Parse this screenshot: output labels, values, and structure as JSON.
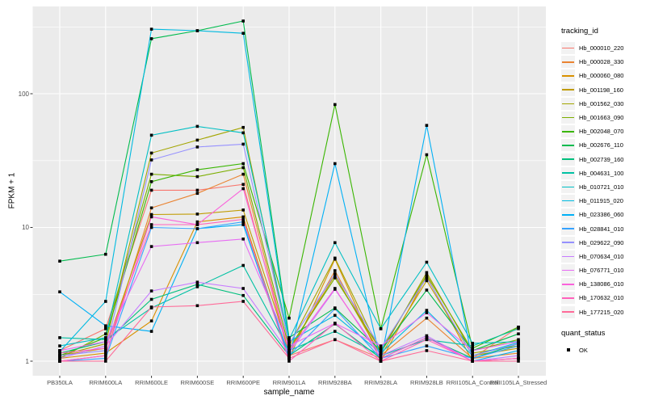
{
  "chart_data": {
    "type": "line",
    "title": "",
    "xlabel": "sample_name",
    "ylabel": "FPKM + 1",
    "x_type": "categorical",
    "y_scale": "log10",
    "ylim": [
      0.78,
      450
    ],
    "y_ticks": [
      1,
      10,
      100
    ],
    "y_minor_gridlines": [
      3.162,
      31.62,
      316.2
    ],
    "grid": true,
    "panel_color": "#EBEBEB",
    "gridline_color": "#FFFFFF",
    "point_color": "#000000",
    "point_shape": "square",
    "categories": [
      "PB350LA",
      "RRIM600LA",
      "RRIM600LE",
      "RRIM600SE",
      "RRIM600PE",
      "RRIM901LA",
      "RRIM928BA",
      "RRIM928LA",
      "RRIM928LB",
      "RRII105LA_Control",
      "RRII105LA_Stressed"
    ],
    "series": [
      {
        "name": "Hb_000010_220",
        "color": "#F8766D",
        "values": [
          1.2,
          1.75,
          19,
          19,
          21,
          1.1,
          1.45,
          1.05,
          1.5,
          1.05,
          1.8
        ]
      },
      {
        "name": "Hb_000028_330",
        "color": "#EA8331",
        "values": [
          1.0,
          1.1,
          14,
          18,
          25,
          1.15,
          4.75,
          1.1,
          2.1,
          1.05,
          1.15
        ]
      },
      {
        "name": "Hb_000060_080",
        "color": "#D89000",
        "values": [
          1.05,
          1.15,
          2.0,
          11,
          12,
          1.05,
          5.8,
          1.0,
          4.3,
          1.0,
          1.05
        ]
      },
      {
        "name": "Hb_001198_160",
        "color": "#C09B00",
        "values": [
          1.1,
          1.25,
          12.5,
          12.6,
          13.5,
          1.2,
          4.4,
          1.1,
          4.0,
          1.1,
          1.25
        ]
      },
      {
        "name": "Hb_001562_030",
        "color": "#A3A500",
        "values": [
          1.1,
          1.35,
          36,
          45,
          56,
          1.3,
          5.9,
          1.15,
          4.6,
          1.15,
          1.3
        ]
      },
      {
        "name": "Hb_001663_090",
        "color": "#7CAE00",
        "values": [
          1.05,
          1.6,
          25,
          24,
          28,
          1.25,
          4.2,
          1.2,
          4.4,
          1.2,
          1.45
        ]
      },
      {
        "name": "Hb_002048_070",
        "color": "#39B600",
        "values": [
          1.1,
          1.5,
          22,
          27,
          30,
          2.1,
          83,
          1.75,
          35,
          1.25,
          1.8
        ]
      },
      {
        "name": "Hb_002676_110",
        "color": "#00BB4E",
        "values": [
          5.6,
          6.3,
          258,
          296,
          350,
          1.5,
          2.5,
          1.2,
          3.4,
          1.2,
          1.6
        ]
      },
      {
        "name": "Hb_002739_160",
        "color": "#00BF7D",
        "values": [
          1.15,
          1.4,
          2.9,
          3.75,
          3.1,
          1.1,
          1.9,
          1.05,
          1.5,
          1.05,
          1.35
        ]
      },
      {
        "name": "Hb_004631_100",
        "color": "#00C1A3",
        "values": [
          1.5,
          1.45,
          2.5,
          3.6,
          5.2,
          1.2,
          1.67,
          1.1,
          1.45,
          1.3,
          1.75
        ]
      },
      {
        "name": "Hb_010721_010",
        "color": "#00BFC4",
        "values": [
          1.3,
          1.5,
          49,
          57,
          51,
          1.45,
          7.7,
          1.75,
          5.5,
          1.36,
          1.4
        ]
      },
      {
        "name": "Hb_011915_020",
        "color": "#00BAE0",
        "values": [
          1.18,
          2.8,
          304,
          296,
          283,
          1.4,
          2.2,
          1.15,
          2.4,
          1.1,
          1.38
        ]
      },
      {
        "name": "Hb_023386_060",
        "color": "#00B0F6",
        "values": [
          3.3,
          1.84,
          1.67,
          9.8,
          10.5,
          1.05,
          30,
          1.0,
          58,
          1.0,
          1.2
        ]
      },
      {
        "name": "Hb_028841_010",
        "color": "#35A2FF",
        "values": [
          1.0,
          1.05,
          10,
          9.8,
          11,
          1.1,
          2.47,
          1.05,
          1.3,
          1.05,
          1.3
        ]
      },
      {
        "name": "Hb_029622_090",
        "color": "#9590FF",
        "values": [
          1.1,
          1.2,
          32,
          40,
          42,
          1.35,
          4.5,
          1.25,
          4.2,
          1.1,
          1.35
        ]
      },
      {
        "name": "Hb_070634_010",
        "color": "#C77CFF",
        "values": [
          1.05,
          1.3,
          3.35,
          3.9,
          3.5,
          1.15,
          3.45,
          1.1,
          1.55,
          1.0,
          1.1
        ]
      },
      {
        "name": "Hb_076771_010",
        "color": "#E76BF3",
        "values": [
          1.2,
          1.4,
          7.2,
          7.7,
          8.2,
          1.3,
          1.92,
          1.3,
          2.3,
          1.2,
          1.4
        ]
      },
      {
        "name": "Hb_138086_010",
        "color": "#FA62DB",
        "values": [
          1.0,
          1.1,
          12,
          10.5,
          19.5,
          1.2,
          3.5,
          1.05,
          1.5,
          1.0,
          1.05
        ]
      },
      {
        "name": "Hb_170632_010",
        "color": "#FF62BC",
        "values": [
          1.15,
          1.25,
          10.5,
          10.5,
          11.5,
          1.0,
          1.92,
          1.0,
          1.45,
          1.0,
          1.05
        ]
      },
      {
        "name": "Hb_177215_020",
        "color": "#FF6A98",
        "values": [
          1.0,
          1.0,
          2.54,
          2.6,
          2.8,
          1.05,
          1.45,
          1.0,
          1.2,
          1.0,
          1.0
        ]
      }
    ],
    "legend": {
      "position": "right",
      "tracking_title": "tracking_id",
      "quant_title": "quant_status",
      "quant_items": [
        {
          "label": "OK",
          "color": "#000000",
          "shape": "square"
        }
      ]
    }
  }
}
